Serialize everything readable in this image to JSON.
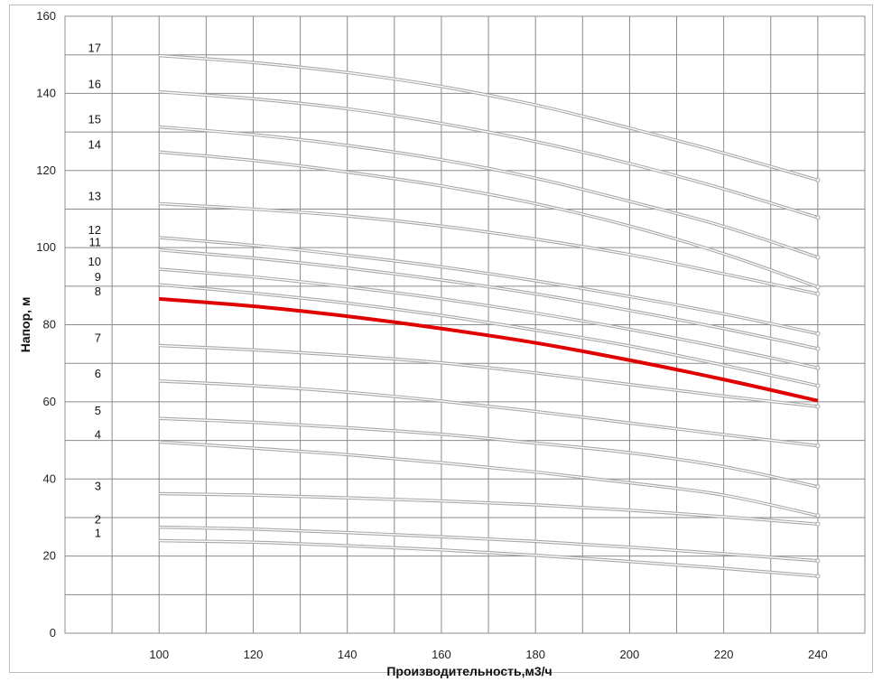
{
  "chart_data": {
    "type": "line",
    "title": "",
    "xlabel": "Производительность,м3/ч",
    "ylabel": "Напор, м",
    "xlim": [
      80,
      250
    ],
    "ylim": [
      0,
      160
    ],
    "x_ticks": [
      100,
      120,
      140,
      160,
      180,
      200,
      220,
      240
    ],
    "y_ticks": [
      0,
      20,
      40,
      60,
      80,
      100,
      120,
      140,
      160
    ],
    "grid": true,
    "x": [
      100,
      120,
      140,
      160,
      180,
      200,
      220,
      240
    ],
    "highlight_color": "#e00000",
    "curve_color": "#a8a8a8",
    "series": [
      {
        "name": "1",
        "values": [
          24.0,
          23.6,
          22.7,
          21.6,
          20.2,
          18.6,
          16.8,
          14.8
        ]
      },
      {
        "name": "2",
        "values": [
          27.5,
          27.0,
          26.1,
          25.0,
          23.8,
          22.3,
          20.6,
          18.8
        ]
      },
      {
        "name": "3",
        "values": [
          36.2,
          35.8,
          35.1,
          34.3,
          33.3,
          31.9,
          30.2,
          28.3
        ]
      },
      {
        "name": "4",
        "values": [
          49.6,
          48.0,
          46.3,
          44.2,
          41.8,
          39.0,
          35.8,
          30.5
        ]
      },
      {
        "name": "5",
        "values": [
          55.7,
          54.7,
          53.3,
          51.6,
          49.3,
          46.8,
          43.2,
          38.0
        ]
      },
      {
        "name": "6",
        "values": [
          65.4,
          64.2,
          62.5,
          60.2,
          57.5,
          54.5,
          51.5,
          48.6
        ]
      },
      {
        "name": "7",
        "values": [
          74.6,
          73.5,
          72.0,
          70.1,
          67.5,
          64.5,
          61.5,
          58.8
        ]
      },
      {
        "name": "8",
        "values": [
          86.7,
          84.8,
          82.2,
          79.0,
          75.3,
          70.8,
          65.8,
          60.3
        ]
      },
      {
        "name": "9",
        "values": [
          90.4,
          88.2,
          85.6,
          82.4,
          78.6,
          74.5,
          69.5,
          64.2
        ]
      },
      {
        "name": "10",
        "values": [
          94.4,
          92.4,
          89.8,
          86.7,
          83.0,
          78.8,
          74.0,
          68.8
        ]
      },
      {
        "name": "11",
        "values": [
          99.4,
          97.3,
          94.7,
          91.6,
          88.0,
          83.7,
          79.0,
          73.8
        ]
      },
      {
        "name": "12",
        "values": [
          102.6,
          100.6,
          98.0,
          95.0,
          91.4,
          87.3,
          82.8,
          77.7
        ]
      },
      {
        "name": "13",
        "values": [
          111.4,
          110.0,
          108.2,
          105.6,
          102.2,
          98.2,
          93.2,
          88.0
        ]
      },
      {
        "name": "14",
        "values": [
          124.8,
          122.6,
          119.6,
          116.0,
          111.4,
          105.6,
          98.4,
          89.8
        ]
      },
      {
        "name": "15",
        "values": [
          131.3,
          129.3,
          126.5,
          122.8,
          118.0,
          112.0,
          105.5,
          97.5
        ]
      },
      {
        "name": "16",
        "values": [
          140.4,
          138.6,
          136.0,
          132.2,
          127.5,
          121.8,
          115.2,
          107.8
        ]
      },
      {
        "name": "17",
        "values": [
          149.8,
          148.0,
          145.4,
          141.8,
          137.0,
          131.0,
          124.5,
          117.5
        ]
      }
    ],
    "highlighted_series": "8"
  }
}
